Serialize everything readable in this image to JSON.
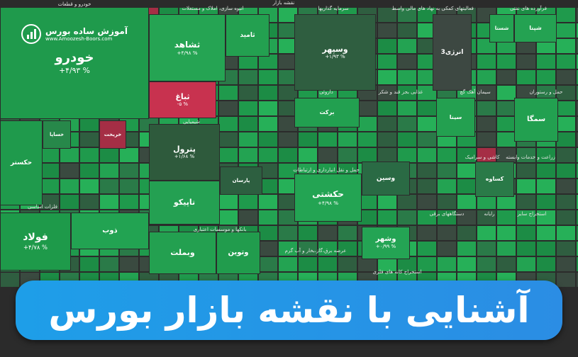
{
  "logo": {
    "name": "آموزش ساده بورس",
    "url": "www.Amoozesh-Boors.com"
  },
  "map_title": "نقشه بازار",
  "sectors": [
    "خودرو و قطعات",
    "انبوه سازی، املاک و مستغلات",
    "سرمایه گذاریها",
    "فعالیتهای کمکی به نهاد های مالی واسط",
    "فرآورده های نفتی",
    "شیمیایی",
    "داروئی",
    "غذایی بجز قند و شکر",
    "سیمان آهک گچ",
    "حمل و رستوران",
    "فلزات اساسی",
    "بانکها و موسسات اعتباری",
    "حمل و نقل انبارداری و ارتباطات",
    "کاشی و سرامیک",
    "زراعت و خدمات وابسته",
    "عرضه برق،گاز،بخار و آب گرم",
    "استخراج کانه های فلزی",
    "دستگاههای برقی",
    "رایانه",
    "استخراج سایر"
  ],
  "tiles": [
    {
      "name": "خودرو",
      "change": "+۴/۹۳ %",
      "color": "#1f9a4c"
    },
    {
      "name": "ثشاهد",
      "change": "+۴/۹۸ %",
      "color": "#25a453"
    },
    {
      "name": "ثامید",
      "color": "#23a050"
    },
    {
      "name": "ثباغ",
      "change": "-۵ %",
      "color": "#c8324f"
    },
    {
      "name": "وسپهر",
      "change": "+۱/۹۳ %",
      "color": "#2f5e40"
    },
    {
      "name": "انرژی3",
      "color": "#3d4842"
    },
    {
      "name": "پترول",
      "change": "+۱/۶۸ %",
      "color": "#2e5a3c"
    },
    {
      "name": "تاپیکو",
      "color": "#24a052"
    },
    {
      "name": "حکشتی",
      "change": "+۴/۹۸ %",
      "color": "#23a453"
    },
    {
      "name": "برکت",
      "color": "#22a050"
    },
    {
      "name": "وسین",
      "color": "#2a6a44"
    },
    {
      "name": "فولاد",
      "change": "+۴/۷۸ %",
      "color": "#1e9a4a"
    },
    {
      "name": "ذوب",
      "color": "#22a352"
    },
    {
      "name": "وبملت",
      "color": "#23a050"
    },
    {
      "name": "وتوین",
      "color": "#219c4d"
    },
    {
      "name": "وشهر",
      "change": "+۰/۹۹ %",
      "color": "#24a454"
    },
    {
      "name": "سمگا",
      "color": "#22a050"
    },
    {
      "name": "حکستر",
      "color": "#1f9a4c"
    },
    {
      "name": "خساپا",
      "color": "#27884a"
    },
    {
      "name": "خریخت",
      "color": "#a52e45"
    },
    {
      "name": "پارسان",
      "color": "#2d5f40"
    },
    {
      "name": "شپنا",
      "color": "#24a252"
    },
    {
      "name": "سینا",
      "color": "#23a050"
    },
    {
      "name": "کساوه",
      "color": "#2a7a48"
    },
    {
      "name": "شستا",
      "color": "#24a352"
    }
  ],
  "banner": {
    "title": "آشنایی با نقشه بازار بورس"
  }
}
